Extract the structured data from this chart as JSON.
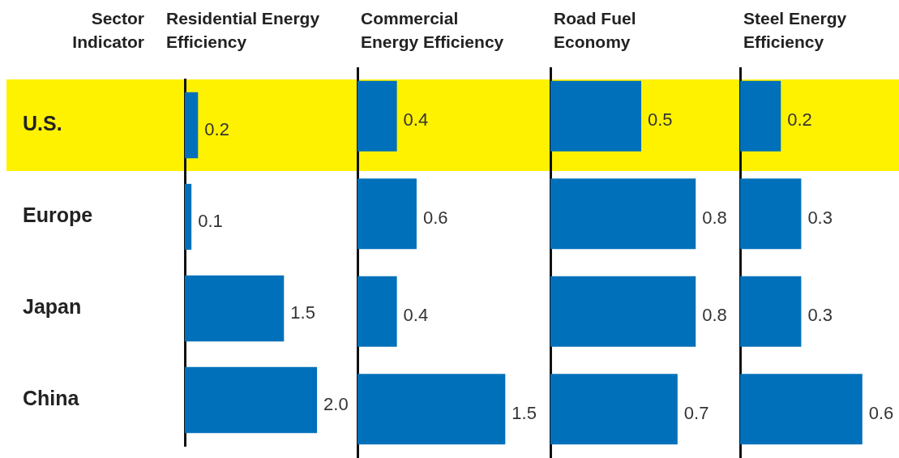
{
  "chart_data": [
    {
      "type": "bar",
      "orientation": "horizontal",
      "title": "Residential Energy Efficiency",
      "ylabel": "Sector Indicator",
      "categories": [
        "U.S.",
        "Europe",
        "Japan",
        "China"
      ],
      "values": [
        0.2,
        0.1,
        1.5,
        2.0
      ],
      "value_labels": [
        "0.2",
        "0.1",
        "1.5",
        "2.0"
      ],
      "color": "#0070ba",
      "legend": false,
      "tick_labels": "y",
      "bands": [
        {
          "axis": "y",
          "from": "U.S.",
          "to": "U.S.",
          "color": "#fff200"
        }
      ]
    },
    {
      "type": "bar",
      "orientation": "horizontal",
      "title": "Commercial Energy Efficiency",
      "categories": [
        null,
        null,
        null,
        null
      ],
      "values": [
        0.4,
        0.6,
        0.4,
        1.5
      ],
      "color": "#0070ba",
      "data_labels": true,
      "legend": false,
      "tick_labels": false
    },
    {
      "type": "bar",
      "orientation": "horizontal",
      "title": "Road Fuel Economy",
      "categories": [
        null,
        null,
        null,
        null
      ],
      "values": [
        0.5,
        0.8,
        0.8,
        0.7
      ],
      "color": "#0070ba",
      "data_labels": true,
      "legend": false,
      "tick_labels": false
    },
    {
      "type": "bar",
      "orientation": "horizontal",
      "title": "Steel Energy Efficiency",
      "categories": [
        null,
        null,
        null,
        null
      ],
      "values": [
        0.2,
        0.3,
        0.3,
        0.6
      ],
      "color": "#0070ba",
      "data_labels": true,
      "legend": false,
      "tick_labels": false
    }
  ]
}
